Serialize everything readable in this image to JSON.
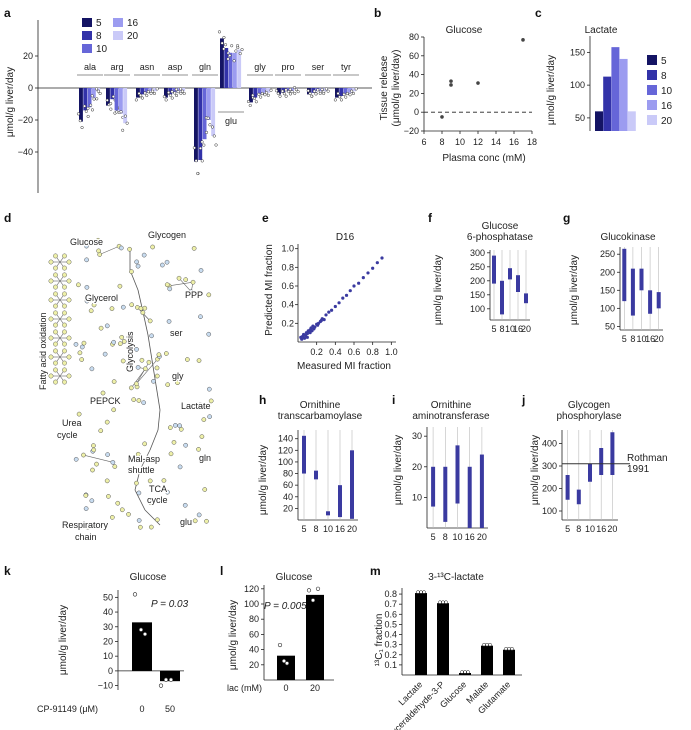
{
  "colors": {
    "d5": "#141464",
    "d8": "#3232a8",
    "d10": "#6666d8",
    "d16": "#9c9cf0",
    "d20": "#cacaf8",
    "bar_black": "#000000",
    "node_fill": "#eef0a8",
    "node_blue": "#c8dcf0"
  },
  "panels": {
    "a": {
      "label": "a",
      "ylabel": "μmol/g liver/day",
      "yticks": [
        "20",
        "0",
        "−20",
        "−40"
      ],
      "legend": [
        "5",
        "8",
        "10",
        "16",
        "20"
      ]
    },
    "b": {
      "label": "b",
      "title": "Glucose",
      "ylabel_1": "Tissue release",
      "ylabel_2": "(μmol/g liver/day)",
      "xlabel": "Plasma conc (mM)"
    },
    "c": {
      "label": "c",
      "title": "Lactate",
      "ylabel": "μmol/g liver/day",
      "legend": [
        "5",
        "8",
        "10",
        "16",
        "20"
      ]
    },
    "d": {
      "label": "d",
      "labels": [
        "Glucose",
        "Glycogen",
        "Glycerol",
        "PPP",
        "Fatty acid oxidation",
        "Glycolysis",
        "ser",
        "gly",
        "PEPCK",
        "Lactate",
        "Urea",
        "cycle",
        "Mal-asp",
        "shuttle",
        "gln",
        "TCA",
        "cycle",
        "glu",
        "Respiratory",
        "chain"
      ]
    },
    "e": {
      "label": "e",
      "title": "D16",
      "ylabel": "Predicted MI fraction",
      "xlabel": "Measured MI fraction",
      "xticks": [
        "0.2",
        "0.4",
        "0.6",
        "0.8",
        "1.0"
      ],
      "yticks": [
        "1.0",
        "0.8",
        "0.6",
        "0.4",
        "0.2"
      ]
    },
    "f": {
      "label": "f",
      "title_1": "Glucose",
      "title_2": "6-phosphatase",
      "ylabel": "μmol/g liver/day",
      "yticks": [
        "300",
        "250",
        "200",
        "150",
        "100"
      ],
      "xticks": [
        "5",
        "8",
        "10",
        "16",
        "20"
      ]
    },
    "g": {
      "label": "g",
      "title": "Glucokinase",
      "ylabel": "μmol/g liver/day",
      "yticks": [
        "250",
        "200",
        "150",
        "100",
        "50"
      ],
      "xticks": [
        "5",
        "8",
        "10",
        "16",
        "20"
      ]
    },
    "h": {
      "label": "h",
      "title_1": "Ornithine",
      "title_2": "transcarbamoylase",
      "ylabel": "μmol/g liver/day",
      "yticks": [
        "140",
        "120",
        "100",
        "80",
        "60",
        "40",
        "20"
      ],
      "xticks": [
        "5",
        "8",
        "10",
        "16",
        "20"
      ]
    },
    "i": {
      "label": "i",
      "title_1": "Ornithine",
      "title_2": "aminotransferase",
      "ylabel": "μmol/g liver/day",
      "yticks": [
        "30",
        "20",
        "10"
      ],
      "xticks": [
        "5",
        "8",
        "10",
        "16",
        "20"
      ]
    },
    "j": {
      "label": "j",
      "title_1": "Glycogen",
      "title_2": "phosphorylase",
      "ylabel": "μmol/g liver/day",
      "yticks": [
        "400",
        "300",
        "200",
        "100"
      ],
      "xticks": [
        "5",
        "8",
        "10",
        "16",
        "20"
      ],
      "ref_1": "Rothman",
      "ref_2": "1991"
    },
    "k": {
      "label": "k",
      "title": "Glucose",
      "ylabel": "μmol/g liver/day",
      "pvalue": "P = 0.03",
      "xaxis_label": "CP-91149 (μM)"
    },
    "l": {
      "label": "l",
      "title": "Glucose",
      "ylabel": "μmol/g liver/day",
      "pvalue": "P = 0.005",
      "xaxis_label": "lac (mM)"
    },
    "m": {
      "label": "m",
      "title": "3-¹³C-lactate",
      "ylabel": "¹³C₁ fraction"
    }
  },
  "chart_data": [
    {
      "panel": "a",
      "type": "bar",
      "series_names": [
        "5",
        "8",
        "10",
        "16",
        "20"
      ],
      "groups": [
        {
          "name": "ala",
          "values": [
            -21,
            -14,
            -12,
            -6,
            -2
          ]
        },
        {
          "name": "arg",
          "values": [
            -11,
            -7,
            -14,
            -16,
            -22
          ]
        },
        {
          "name": "asn",
          "values": [
            -6,
            -4,
            -3,
            -2,
            -2
          ]
        },
        {
          "name": "asp",
          "values": [
            -6,
            -4,
            -3,
            -2,
            -2
          ]
        },
        {
          "name": "gln",
          "values": [
            -46,
            -45,
            -32,
            -20,
            -30
          ]
        },
        {
          "name": "glu",
          "values": [
            31,
            25,
            22,
            22,
            24
          ]
        },
        {
          "name": "gly",
          "values": [
            -9,
            -6,
            -4,
            -3,
            -3
          ]
        },
        {
          "name": "pro",
          "values": [
            -4,
            -3,
            -2,
            -2,
            -1
          ]
        },
        {
          "name": "ser",
          "values": [
            -4,
            -3,
            -2,
            -2,
            -2
          ]
        },
        {
          "name": "tyr",
          "values": [
            -6,
            -5,
            -4,
            -3,
            -2
          ]
        }
      ]
    },
    {
      "panel": "b",
      "type": "scatter",
      "x": [
        8,
        9,
        9,
        12,
        17
      ],
      "y": [
        -5,
        33,
        29,
        31,
        77
      ],
      "xlabel": "Plasma conc (mM)",
      "ylabel": "Tissue release (μmol/g liver/day)",
      "xlim": [
        6,
        18
      ],
      "ylim": [
        -20,
        80
      ],
      "xticks": [
        6,
        8,
        10,
        12,
        14,
        16,
        18
      ],
      "yticks": [
        -20,
        0,
        20,
        40,
        60,
        80
      ]
    },
    {
      "panel": "c",
      "type": "bar",
      "categories": [
        "5",
        "8",
        "10",
        "16",
        "20"
      ],
      "values": [
        60,
        113,
        158,
        140,
        60
      ],
      "yticks": [
        50,
        100,
        150
      ],
      "ylim": [
        30,
        175
      ]
    },
    {
      "panel": "f",
      "type": "range",
      "categories": [
        "5",
        "8",
        "10",
        "16",
        "20"
      ],
      "low": [
        190,
        80,
        205,
        160,
        120
      ],
      "high": [
        290,
        200,
        245,
        220,
        155
      ],
      "yticks": [
        100,
        150,
        200,
        250,
        300
      ],
      "ylim": [
        60,
        310
      ]
    },
    {
      "panel": "g",
      "type": "range",
      "categories": [
        "5",
        "8",
        "10",
        "16",
        "20"
      ],
      "low": [
        120,
        80,
        150,
        85,
        100
      ],
      "high": [
        265,
        210,
        210,
        150,
        145
      ],
      "yticks": [
        50,
        100,
        150,
        200,
        250
      ],
      "ylim": [
        40,
        270
      ]
    },
    {
      "panel": "h",
      "type": "range",
      "categories": [
        "5",
        "8",
        "10",
        "16",
        "20"
      ],
      "low": [
        80,
        70,
        8,
        5,
        2
      ],
      "high": [
        145,
        85,
        15,
        60,
        120
      ],
      "yticks": [
        20,
        40,
        60,
        80,
        100,
        120,
        140
      ],
      "ylim": [
        0,
        155
      ]
    },
    {
      "panel": "i",
      "type": "range",
      "categories": [
        "5",
        "8",
        "10",
        "16",
        "20"
      ],
      "low": [
        7,
        2,
        8,
        0,
        0
      ],
      "high": [
        20,
        20,
        27,
        20,
        24
      ],
      "yticks": [
        10,
        20,
        30
      ],
      "ylim": [
        0,
        33
      ]
    },
    {
      "panel": "j",
      "type": "range",
      "categories": [
        "5",
        "8",
        "10",
        "16",
        "20"
      ],
      "low": [
        150,
        130,
        230,
        260,
        260
      ],
      "high": [
        260,
        195,
        310,
        380,
        450
      ],
      "yticks": [
        100,
        200,
        300,
        400
      ],
      "ylim": [
        60,
        460
      ],
      "reference_line": 310
    },
    {
      "panel": "e",
      "type": "scatter",
      "x": [
        0.03,
        0.05,
        0.06,
        0.08,
        0.09,
        0.1,
        0.11,
        0.12,
        0.13,
        0.14,
        0.15,
        0.16,
        0.18,
        0.2,
        0.22,
        0.24,
        0.26,
        0.28,
        0.3,
        0.33,
        0.36,
        0.4,
        0.44,
        0.48,
        0.52,
        0.56,
        0.6,
        0.65,
        0.7,
        0.75,
        0.8,
        0.85,
        0.9,
        0.04,
        0.07,
        0.1,
        0.13,
        0.17,
        0.21,
        0.25
      ],
      "y": [
        0.05,
        0.06,
        0.08,
        0.07,
        0.1,
        0.09,
        0.12,
        0.11,
        0.13,
        0.15,
        0.12,
        0.17,
        0.16,
        0.19,
        0.2,
        0.22,
        0.25,
        0.24,
        0.29,
        0.32,
        0.34,
        0.38,
        0.42,
        0.47,
        0.5,
        0.55,
        0.6,
        0.63,
        0.69,
        0.74,
        0.79,
        0.85,
        0.9,
        0.03,
        0.04,
        0.05,
        0.1,
        0.14,
        0.18,
        0.23
      ],
      "xlim": [
        0,
        1.05
      ],
      "ylim": [
        0,
        1.05
      ]
    },
    {
      "panel": "k",
      "type": "bar",
      "categories": [
        "0",
        "50"
      ],
      "values": [
        33,
        -7
      ],
      "yticks": [
        -10,
        0,
        10,
        20,
        30,
        40,
        50
      ],
      "ylim": [
        -13,
        55
      ]
    },
    {
      "panel": "l",
      "type": "bar",
      "categories": [
        "0",
        "20"
      ],
      "values": [
        32,
        112
      ],
      "yticks": [
        20,
        40,
        60,
        80,
        100,
        120
      ],
      "ylim": [
        0,
        125
      ]
    },
    {
      "panel": "m",
      "type": "bar",
      "categories": [
        "Lactate",
        "Glyceraldehyde-3-P",
        "Glucose",
        "Malate",
        "Glutamate"
      ],
      "values": [
        0.81,
        0.71,
        0.02,
        0.29,
        0.25
      ],
      "yticks": [
        0.1,
        0.2,
        0.3,
        0.4,
        0.5,
        0.6,
        0.7,
        0.8
      ],
      "ylim": [
        0,
        0.86
      ]
    }
  ]
}
